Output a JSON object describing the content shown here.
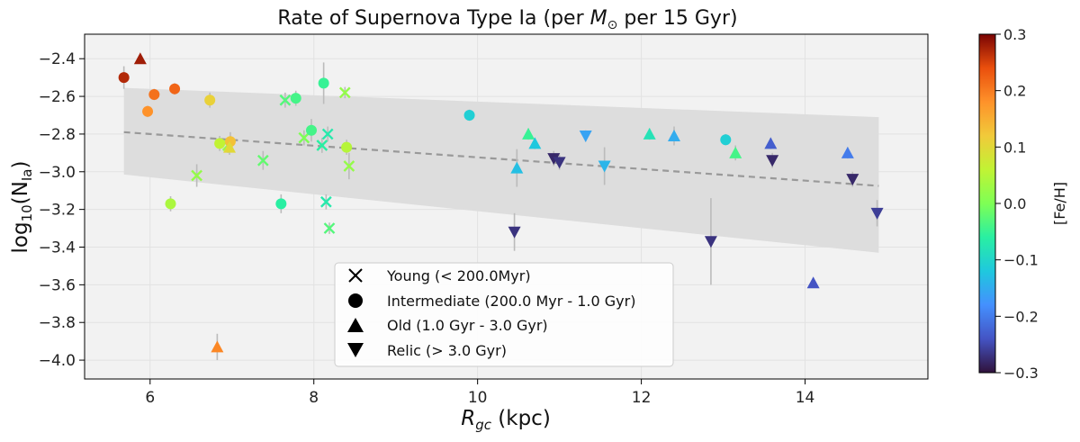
{
  "chart_data": {
    "type": "scatter",
    "title": "Rate of Supernova Type Ia (per M⊙ per 15 Gyr)",
    "title_parts": {
      "prefix": "Rate of Supernova Type Ia (per ",
      "symbol": "M",
      "subscript": "⊙",
      "suffix": " per 15 Gyr)"
    },
    "xlabel": "R_gc (kpc)",
    "xlabel_parts": {
      "symbol": "R",
      "subscript": "gc",
      "suffix": " (kpc)"
    },
    "ylabel": "log10(N_Ia)",
    "ylabel_parts": {
      "prefix": "log",
      "subscript": "10",
      "inner": "(N",
      "inner_sub": "Ia",
      "close": ")"
    },
    "xlim": [
      5.2,
      15.5
    ],
    "ylim": [
      -4.1,
      -2.27
    ],
    "xticks": [
      6,
      8,
      10,
      12,
      14
    ],
    "xtick_labels": [
      "6",
      "8",
      "10",
      "12",
      "14"
    ],
    "yticks": [
      -4.0,
      -3.8,
      -3.6,
      -3.4,
      -3.2,
      -3.0,
      -2.8,
      -2.6,
      -2.4
    ],
    "ytick_labels": [
      "−4.0",
      "−3.8",
      "−3.6",
      "−3.4",
      "−3.2",
      "−3.0",
      "−2.8",
      "−2.6",
      "−2.4"
    ],
    "grid": true,
    "fit": {
      "x": [
        5.68,
        14.9
      ],
      "y": [
        -2.79,
        -3.075
      ],
      "style": "dashed",
      "color": "#999999"
    },
    "band": {
      "x": [
        5.68,
        14.9
      ],
      "upper": [
        -2.555,
        -2.71
      ],
      "lower": [
        -3.015,
        -3.43
      ],
      "color": "#dddddd"
    },
    "colorbar": {
      "label": "[Fe/H]",
      "range": [
        -0.3,
        0.3
      ],
      "ticks": [
        0.3,
        0.2,
        0.1,
        0.0,
        -0.1,
        -0.2,
        -0.3
      ],
      "tick_labels": [
        "0.3",
        "0.2",
        "0.1",
        "0.0",
        "−0.1",
        "−0.2",
        "−0.3"
      ]
    },
    "legend": {
      "position": "lower-center",
      "entries": [
        {
          "marker": "x",
          "label": "Young (< 200.0Myr)"
        },
        {
          "marker": "circle",
          "label": "Intermediate (200.0 Myr - 1.0 Gyr)"
        },
        {
          "marker": "triangle-up",
          "label": "Old (1.0 Gyr - 3.0 Gyr)"
        },
        {
          "marker": "triangle-down",
          "label": "Relic (> 3.0 Gyr)"
        }
      ]
    },
    "series": [
      {
        "name": "Young",
        "marker": "x",
        "points": [
          {
            "x": 6.57,
            "y": -3.02,
            "feh": 0.02,
            "err": 0.06
          },
          {
            "x": 6.95,
            "y": -2.86,
            "feh": 0.02,
            "err": 0.04
          },
          {
            "x": 7.38,
            "y": -2.94,
            "feh": -0.02,
            "err": 0.05
          },
          {
            "x": 7.65,
            "y": -2.62,
            "feh": -0.03,
            "err": 0.04
          },
          {
            "x": 7.88,
            "y": -2.82,
            "feh": 0.0,
            "err": 0.04
          },
          {
            "x": 8.1,
            "y": -2.86,
            "feh": -0.06,
            "err": 0.04
          },
          {
            "x": 8.17,
            "y": -2.8,
            "feh": -0.07,
            "err": 0.04
          },
          {
            "x": 8.15,
            "y": -3.16,
            "feh": -0.07,
            "err": 0.04
          },
          {
            "x": 8.19,
            "y": -3.3,
            "feh": -0.03,
            "err": 0.03
          },
          {
            "x": 8.38,
            "y": -2.58,
            "feh": 0.02,
            "err": 0.03
          },
          {
            "x": 8.43,
            "y": -2.97,
            "feh": 0.02,
            "err": 0.07
          }
        ]
      },
      {
        "name": "Intermediate",
        "marker": "circle",
        "points": [
          {
            "x": 5.68,
            "y": -2.5,
            "feh": 0.27,
            "err": 0.06
          },
          {
            "x": 5.97,
            "y": -2.68,
            "feh": 0.18,
            "err": 0.03
          },
          {
            "x": 6.05,
            "y": -2.59,
            "feh": 0.21,
            "err": 0.03
          },
          {
            "x": 6.3,
            "y": -2.56,
            "feh": 0.22,
            "err": 0.03
          },
          {
            "x": 6.25,
            "y": -3.17,
            "feh": 0.04,
            "err": 0.04
          },
          {
            "x": 6.73,
            "y": -2.62,
            "feh": 0.11,
            "err": 0.04
          },
          {
            "x": 6.85,
            "y": -2.85,
            "feh": 0.06,
            "err": 0.04
          },
          {
            "x": 6.98,
            "y": -2.84,
            "feh": 0.13,
            "err": 0.05
          },
          {
            "x": 7.6,
            "y": -3.17,
            "feh": -0.06,
            "err": 0.05
          },
          {
            "x": 7.78,
            "y": -2.61,
            "feh": -0.04,
            "err": 0.04
          },
          {
            "x": 7.97,
            "y": -2.78,
            "feh": -0.04,
            "err": 0.06
          },
          {
            "x": 8.12,
            "y": -2.53,
            "feh": -0.05,
            "err": 0.11
          },
          {
            "x": 8.4,
            "y": -2.87,
            "feh": 0.05,
            "err": 0.04
          },
          {
            "x": 9.9,
            "y": -2.7,
            "feh": -0.11,
            "err": 0.03
          },
          {
            "x": 13.03,
            "y": -2.83,
            "feh": -0.11,
            "err": 0.03
          }
        ]
      },
      {
        "name": "Old",
        "marker": "triangle-up",
        "points": [
          {
            "x": 5.88,
            "y": -2.4,
            "feh": 0.28,
            "err": 0.02
          },
          {
            "x": 6.82,
            "y": -3.93,
            "feh": 0.19,
            "err": 0.07
          },
          {
            "x": 6.97,
            "y": -2.87,
            "feh": 0.1,
            "err": 0.04
          },
          {
            "x": 10.48,
            "y": -2.98,
            "feh": -0.13,
            "err": 0.1
          },
          {
            "x": 10.62,
            "y": -2.8,
            "feh": -0.05,
            "err": 0.03
          },
          {
            "x": 10.7,
            "y": -2.85,
            "feh": -0.12,
            "err": 0.03
          },
          {
            "x": 12.1,
            "y": -2.8,
            "feh": -0.08,
            "err": 0.03
          },
          {
            "x": 12.4,
            "y": -2.81,
            "feh": -0.15,
            "err": 0.05
          },
          {
            "x": 13.15,
            "y": -2.9,
            "feh": -0.04,
            "err": 0.04
          },
          {
            "x": 13.58,
            "y": -2.85,
            "feh": -0.23,
            "err": 0.03
          },
          {
            "x": 14.1,
            "y": -3.59,
            "feh": -0.24,
            "err": 0.02
          },
          {
            "x": 14.52,
            "y": -2.9,
            "feh": -0.2,
            "err": 0.03
          }
        ]
      },
      {
        "name": "Relic",
        "marker": "triangle-down",
        "points": [
          {
            "x": 10.45,
            "y": -3.32,
            "feh": -0.27,
            "err": 0.1
          },
          {
            "x": 10.93,
            "y": -2.93,
            "feh": -0.28,
            "err": 0.04
          },
          {
            "x": 11.0,
            "y": -2.95,
            "feh": -0.27,
            "err": 0.04
          },
          {
            "x": 11.32,
            "y": -2.81,
            "feh": -0.16,
            "err": 0.03
          },
          {
            "x": 11.55,
            "y": -2.97,
            "feh": -0.14,
            "err": 0.1
          },
          {
            "x": 12.85,
            "y": -3.37,
            "feh": -0.27,
            "err": 0.23
          },
          {
            "x": 13.6,
            "y": -2.94,
            "feh": -0.28,
            "err": 0.04
          },
          {
            "x": 14.58,
            "y": -3.04,
            "feh": -0.28,
            "err": 0.04
          },
          {
            "x": 14.88,
            "y": -3.22,
            "feh": -0.26,
            "err": 0.07
          }
        ]
      }
    ]
  }
}
